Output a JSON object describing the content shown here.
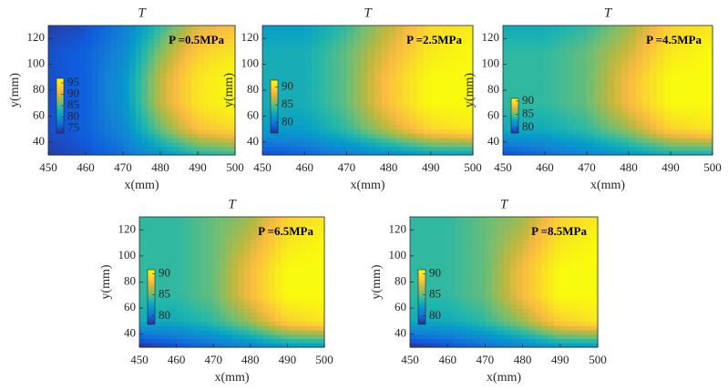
{
  "chart_data": [
    {
      "type": "contour",
      "title": "T",
      "annotation": "P =0.5MPa",
      "xlabel": "x(mm)",
      "ylabel": "y(mm)",
      "colormap": "parula",
      "xlim": [
        450,
        500
      ],
      "ylim": [
        30,
        130
      ],
      "xticks": [
        450,
        460,
        470,
        480,
        490,
        500
      ],
      "yticks": [
        40,
        60,
        80,
        100,
        120
      ],
      "x": [
        450,
        460,
        470,
        480,
        490,
        500
      ],
      "y": [
        30,
        50,
        70,
        90,
        110,
        130
      ],
      "z": [
        [
          74,
          75,
          77,
          80,
          83,
          84
        ],
        [
          75,
          76,
          79,
          86,
          92,
          94
        ],
        [
          75,
          76,
          80,
          89,
          95,
          97
        ],
        [
          75,
          76,
          80,
          89,
          95,
          97
        ],
        [
          75,
          76,
          79,
          87,
          93,
          95
        ],
        [
          74,
          75,
          78,
          84,
          90,
          92
        ]
      ],
      "clim": [
        73,
        97
      ],
      "cticks": [
        75,
        80,
        85,
        90,
        95
      ]
    },
    {
      "type": "contour",
      "title": "T",
      "annotation": "P =2.5MPa",
      "xlabel": "x(mm)",
      "ylabel": "y(mm)",
      "colormap": "parula",
      "xlim": [
        450,
        500
      ],
      "ylim": [
        30,
        130
      ],
      "xticks": [
        450,
        460,
        470,
        480,
        490,
        500
      ],
      "yticks": [
        40,
        60,
        80,
        100,
        120
      ],
      "x": [
        450,
        460,
        470,
        480,
        490,
        500
      ],
      "y": [
        30,
        50,
        70,
        90,
        110,
        130
      ],
      "z": [
        [
          78,
          79,
          80,
          81,
          82,
          82
        ],
        [
          82,
          82,
          84,
          87,
          90,
          91
        ],
        [
          83,
          83,
          85,
          89,
          92,
          92
        ],
        [
          83,
          83,
          85,
          89,
          92,
          92
        ],
        [
          83,
          83,
          85,
          88,
          91,
          92
        ],
        [
          82,
          82,
          84,
          87,
          90,
          91
        ]
      ],
      "clim": [
        77,
        92
      ],
      "cticks": [
        80,
        85,
        90
      ]
    },
    {
      "type": "contour",
      "title": "T",
      "annotation": "P =4.5MPa",
      "xlabel": "x(mm)",
      "ylabel": "y(mm)",
      "colormap": "parula",
      "xlim": [
        450,
        500
      ],
      "ylim": [
        30,
        130
      ],
      "xticks": [
        450,
        460,
        470,
        480,
        490,
        500
      ],
      "yticks": [
        40,
        60,
        80,
        100,
        120
      ],
      "x": [
        450,
        460,
        470,
        480,
        490,
        500
      ],
      "y": [
        30,
        50,
        70,
        90,
        110,
        130
      ],
      "z": [
        [
          79,
          80,
          81,
          82,
          83,
          83
        ],
        [
          83,
          83,
          84,
          86,
          89,
          90
        ],
        [
          84,
          84,
          85,
          88,
          91,
          91
        ],
        [
          84,
          84,
          85,
          88,
          91,
          91
        ],
        [
          84,
          84,
          85,
          87,
          90,
          91
        ],
        [
          83,
          83,
          84,
          86,
          89,
          90
        ]
      ],
      "clim": [
        78,
        91
      ],
      "cticks": [
        80,
        85,
        90
      ]
    },
    {
      "type": "contour",
      "title": "T",
      "annotation": "P =6.5MPa",
      "xlabel": "x(mm)",
      "ylabel": "y(mm)",
      "colormap": "parula",
      "xlim": [
        450,
        500
      ],
      "ylim": [
        30,
        130
      ],
      "xticks": [
        450,
        460,
        470,
        480,
        490,
        500
      ],
      "yticks": [
        40,
        60,
        80,
        100,
        120
      ],
      "x": [
        450,
        460,
        470,
        480,
        490,
        500
      ],
      "y": [
        30,
        50,
        70,
        90,
        110,
        130
      ],
      "z": [
        [
          78,
          79,
          80,
          81,
          82,
          82
        ],
        [
          83,
          83,
          84,
          86,
          89,
          90
        ],
        [
          84,
          84,
          85,
          88,
          91,
          91
        ],
        [
          84,
          84,
          85,
          88,
          91,
          91
        ],
        [
          84,
          84,
          85,
          87,
          90,
          91
        ],
        [
          84,
          84,
          85,
          86,
          89,
          90
        ]
      ],
      "clim": [
        78,
        91
      ],
      "cticks": [
        80,
        85,
        90
      ]
    },
    {
      "type": "contour",
      "title": "T",
      "annotation": "P =8.5MPa",
      "xlabel": "x(mm)",
      "ylabel": "y(mm)",
      "colormap": "parula",
      "xlim": [
        450,
        500
      ],
      "ylim": [
        30,
        130
      ],
      "xticks": [
        450,
        460,
        470,
        480,
        490,
        500
      ],
      "yticks": [
        40,
        60,
        80,
        100,
        120
      ],
      "x": [
        450,
        460,
        470,
        480,
        490,
        500
      ],
      "y": [
        30,
        50,
        70,
        90,
        110,
        130
      ],
      "z": [
        [
          78,
          79,
          80,
          81,
          82,
          82
        ],
        [
          83,
          83,
          84,
          86,
          89,
          90
        ],
        [
          84,
          84,
          85,
          88,
          91,
          91
        ],
        [
          84,
          84,
          85,
          88,
          91,
          91
        ],
        [
          84,
          84,
          85,
          87,
          90,
          91
        ],
        [
          84,
          84,
          85,
          86,
          89,
          90
        ]
      ],
      "clim": [
        78,
        91
      ],
      "cticks": [
        80,
        85,
        90
      ]
    }
  ]
}
